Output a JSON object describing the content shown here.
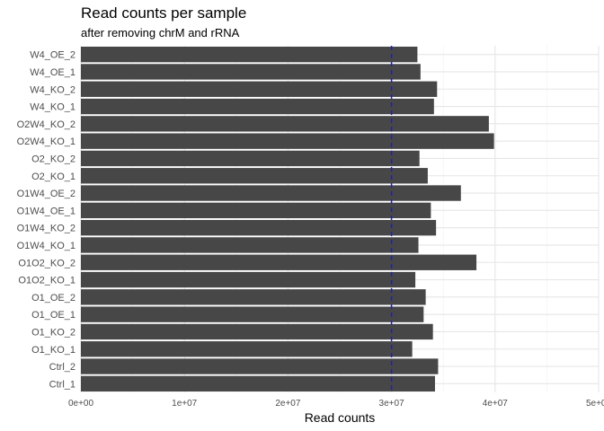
{
  "chart_data": {
    "type": "bar",
    "orientation": "horizontal",
    "title": "Read counts per sample",
    "subtitle": "after removing chrM and rRNA",
    "xlabel": "Read counts",
    "ylabel": "",
    "xlim": [
      0,
      50000000
    ],
    "x_ticks": [
      0,
      10000000,
      20000000,
      30000000,
      40000000,
      50000000
    ],
    "x_tick_labels": [
      "0e+00",
      "1e+07",
      "2e+07",
      "3e+07",
      "4e+07",
      "5e+07"
    ],
    "categories": [
      "Ctrl_1",
      "Ctrl_2",
      "O1_KO_1",
      "O1_KO_2",
      "O1_OE_1",
      "O1_OE_2",
      "O1O2_KO_1",
      "O1O2_KO_2",
      "O1W4_KO_1",
      "O1W4_KO_2",
      "O1W4_OE_1",
      "O1W4_OE_2",
      "O2_KO_1",
      "O2_KO_2",
      "O2W4_KO_1",
      "O2W4_KO_2",
      "W4_KO_1",
      "W4_KO_2",
      "W4_OE_1",
      "W4_OE_2"
    ],
    "values": [
      34200000,
      34500000,
      32000000,
      34000000,
      33100000,
      33300000,
      32300000,
      38200000,
      32600000,
      34300000,
      33800000,
      36700000,
      33500000,
      32700000,
      39900000,
      39400000,
      34100000,
      34400000,
      32800000,
      32500000
    ],
    "reference_line": {
      "value": 30000000,
      "style": "dashed",
      "color": "#1a1adf"
    },
    "bar_color": "#474747",
    "grid": true
  }
}
